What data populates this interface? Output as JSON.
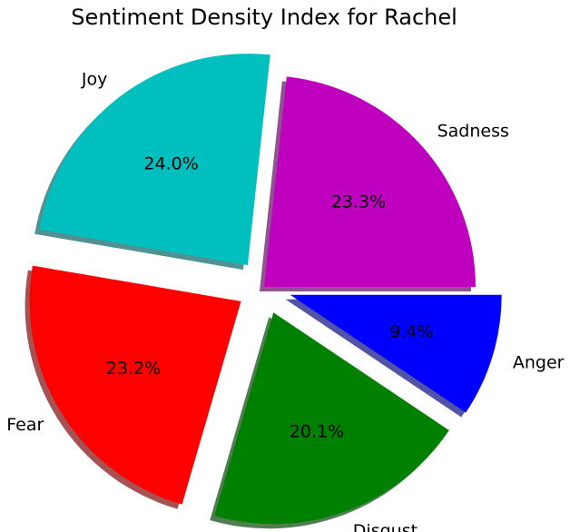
{
  "chart_data": {
    "type": "pie",
    "title": "Sentiment Density Index for Rachel",
    "start_angle_deg": 0,
    "direction": "counterclockwise",
    "shadow": true,
    "slices": [
      {
        "label": "Sadness",
        "value": 23.3,
        "pct_text": "23.3%",
        "color": "#bf00bf",
        "exploded": false
      },
      {
        "label": "Joy",
        "value": 24.0,
        "pct_text": "24.0%",
        "color": "#00bfbf",
        "exploded": true
      },
      {
        "label": "Fear",
        "value": 23.2,
        "pct_text": "23.2%",
        "color": "#ff0000",
        "exploded": true
      },
      {
        "label": "Disgust",
        "value": 20.1,
        "pct_text": "20.1%",
        "color": "#008000",
        "exploded": true
      },
      {
        "label": "Anger",
        "value": 9.4,
        "pct_text": "9.4%",
        "color": "#0000ff",
        "exploded": true
      }
    ]
  }
}
